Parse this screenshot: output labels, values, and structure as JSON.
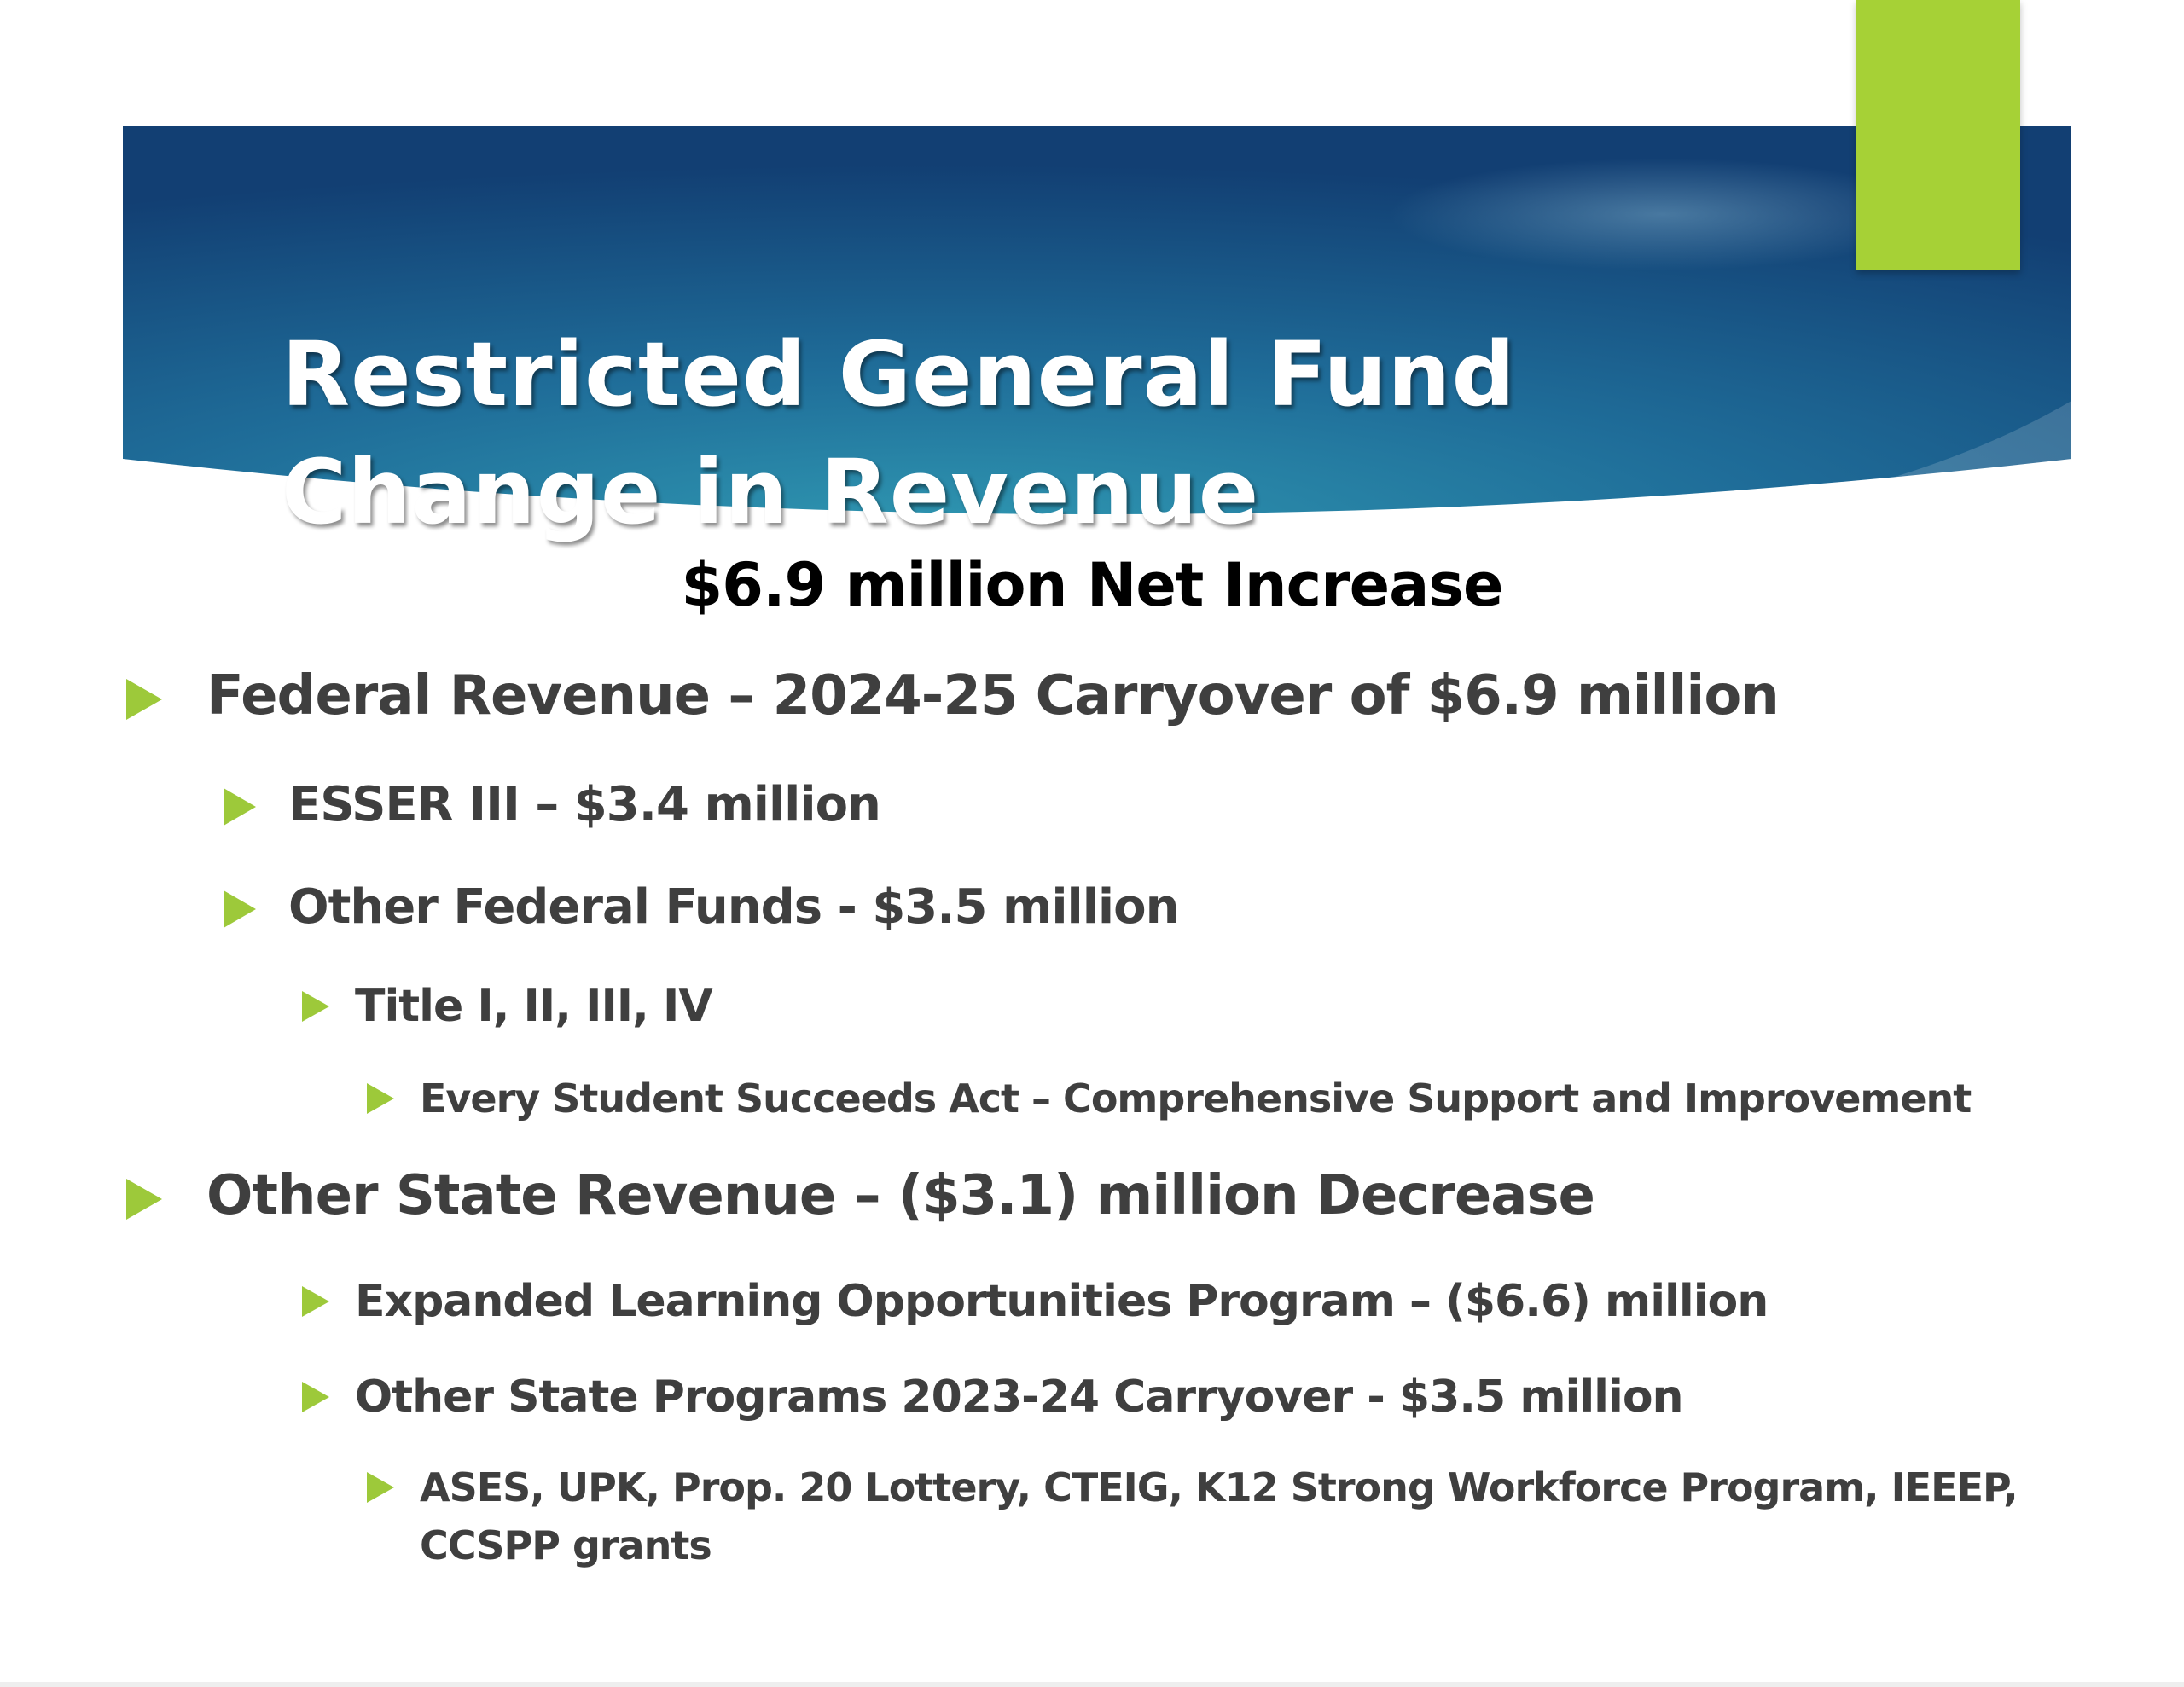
{
  "slide": {
    "title_line1": "Restricted General Fund",
    "title_line2": "Change in Revenue",
    "subtitle": "$6.9 million Net Increase",
    "colors": {
      "banner_dark": "#123f73",
      "banner_mid": "#1f6d99",
      "banner_light": "#2f97b1",
      "accent_green": "#a6d136",
      "bullet_green": "#9dc93a",
      "bullet_text": "#3f3f3f"
    },
    "bullets": [
      {
        "level": 1,
        "text": "Federal Revenue – 2024-25 Carryover of $6.9 million"
      },
      {
        "level": 2,
        "text": "ESSER III – $3.4 million"
      },
      {
        "level": 2,
        "text": "Other Federal Funds - $3.5 million"
      },
      {
        "level": 3,
        "text": "Title I, II, III, IV"
      },
      {
        "level": 4,
        "text": "Every Student Succeeds Act – Comprehensive Support and Improvement"
      },
      {
        "level": 1,
        "text": "Other State Revenue – ($3.1) million Decrease"
      },
      {
        "level": 3,
        "text": "Expanded Learning Opportunities Program – ($6.6) million"
      },
      {
        "level": 3,
        "text": "Other State Programs 2023-24 Carryover - $3.5 million"
      },
      {
        "level": 4,
        "text": "ASES, UPK, Prop. 20 Lottery, CTEIG, K12 Strong Workforce Program, IEEEP, CCSPP grants"
      }
    ]
  }
}
